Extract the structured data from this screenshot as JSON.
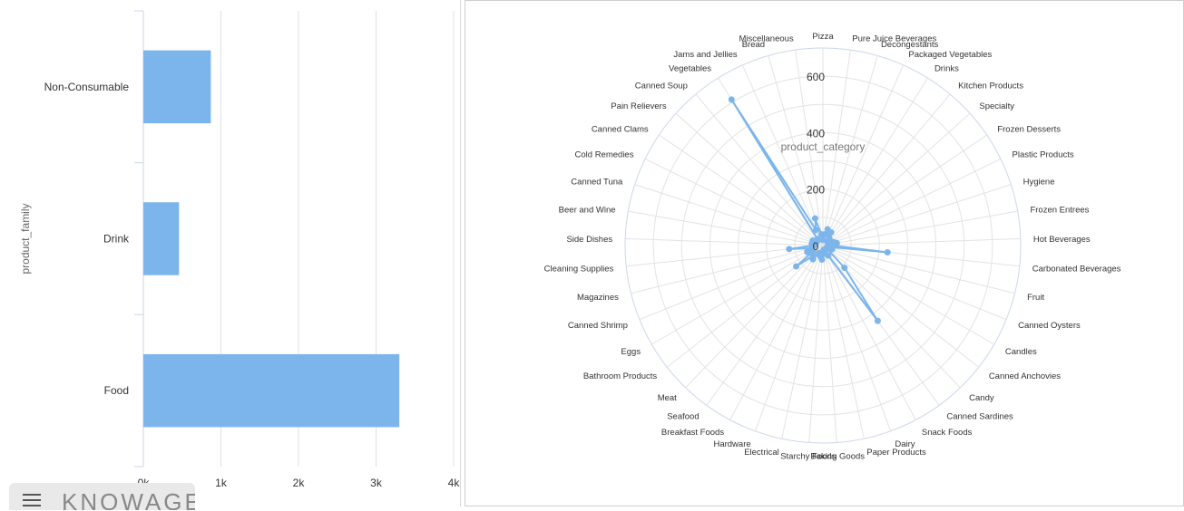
{
  "chart_data": [
    {
      "type": "bar",
      "orientation": "horizontal",
      "categories": [
        "Non-Consumable",
        "Drink",
        "Food"
      ],
      "values": [
        870,
        460,
        3300
      ],
      "xlim": [
        0,
        4000
      ],
      "x_ticks": [
        "0k",
        "1k",
        "2k",
        "3k",
        "4k"
      ],
      "ylabel": "product_family",
      "color": "#7cb5ec",
      "grid": true
    },
    {
      "type": "radar",
      "title": "product_category",
      "rlim": [
        0,
        700
      ],
      "r_ticks": [
        "0",
        "200",
        "400",
        "600"
      ],
      "color": "#7cb5ec",
      "categories": [
        "Pizza",
        "Pure Juice Beverages",
        "Decongestants",
        "Packaged Vegetables",
        "Drinks",
        "Kitchen Products",
        "Specialty",
        "Frozen Desserts",
        "Plastic Products",
        "Hygiene",
        "Frozen Entrees",
        "Hot Beverages",
        "Carbonated Beverages",
        "Fruit",
        "Canned Oysters",
        "Candles",
        "Canned Anchovies",
        "Candy",
        "Canned Sardines",
        "Snack Foods",
        "Dairy",
        "Paper Products",
        "Baking Goods",
        "Starchy Foods",
        "Electrical",
        "Hardware",
        "Breakfast Foods",
        "Seafood",
        "Meat",
        "Bathroom Products",
        "Eggs",
        "Canned Shrimp",
        "Magazines",
        "Cleaning Supplies",
        "Side Dishes",
        "Beer and Wine",
        "Canned Tuna",
        "Cold Remedies",
        "Canned Clams",
        "Pain Relievers",
        "Canned Soup",
        "Vegetables",
        "Jams and Jellies",
        "Bread",
        "Miscellaneous"
      ],
      "values": [
        20,
        40,
        60,
        45,
        55,
        35,
        25,
        20,
        30,
        40,
        50,
        30,
        230,
        20,
        35,
        15,
        20,
        110,
        330,
        40,
        20,
        15,
        30,
        50,
        40,
        35,
        30,
        60,
        50,
        120,
        40,
        60,
        40,
        120,
        30,
        40,
        30,
        40,
        30,
        25,
        30,
        610,
        60,
        100,
        40
      ]
    }
  ]
}
